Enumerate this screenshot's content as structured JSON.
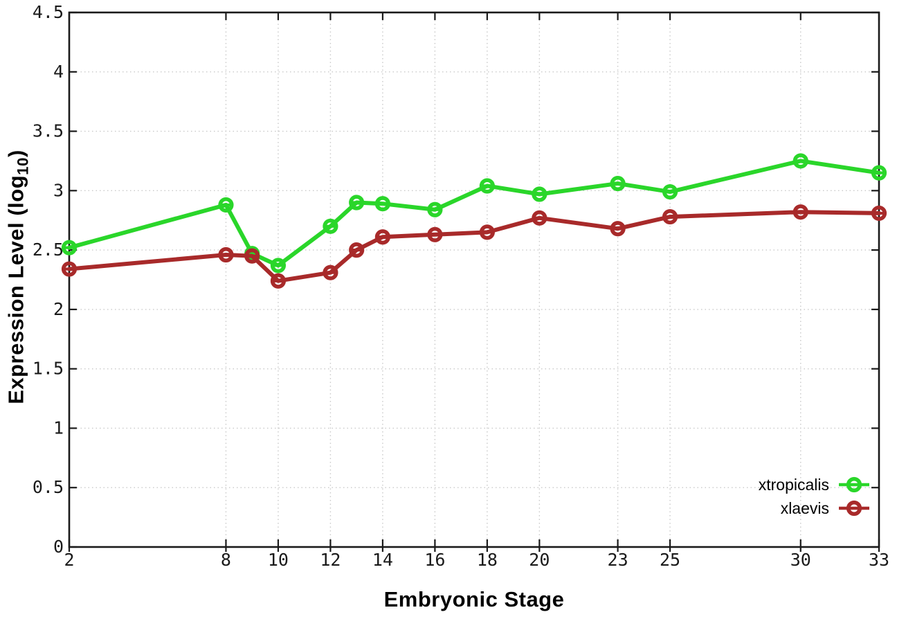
{
  "chart_data": {
    "type": "line",
    "title": "",
    "xlabel": "Embryonic Stage",
    "ylabel": "Expression Level (log10)",
    "ylabel_parts": {
      "prefix": "Expression Level (log",
      "subscript": "10",
      "suffix": ")"
    },
    "xlim": [
      2,
      33
    ],
    "ylim": [
      0,
      4.5
    ],
    "x_ticks": [
      2,
      8,
      10,
      12,
      14,
      16,
      18,
      20,
      23,
      25,
      30,
      33
    ],
    "y_ticks": [
      0,
      0.5,
      1,
      1.5,
      2,
      2.5,
      3,
      3.5,
      4,
      4.5
    ],
    "grid": "dotted",
    "legend_position": "inside-bottom-right",
    "colors": {
      "background": "#ffffff",
      "axis": "#1a1a1a",
      "grid": "#c9c9c9",
      "tick_text": "#1a1a1a",
      "xtropicalis": "#2ad62a",
      "xlaevis": "#a82a2a"
    },
    "marker_style": "open-circle-with-horizontal-dash",
    "series": [
      {
        "name": "xtropicalis",
        "color": "#2ad62a",
        "x": [
          2,
          8,
          9,
          10,
          12,
          13,
          14,
          16,
          18,
          20,
          23,
          25,
          30,
          33
        ],
        "y": [
          2.52,
          2.88,
          2.47,
          2.37,
          2.7,
          2.9,
          2.89,
          2.84,
          3.04,
          2.97,
          3.06,
          2.99,
          3.25,
          3.15
        ]
      },
      {
        "name": "xlaevis",
        "color": "#a82a2a",
        "x": [
          2,
          8,
          9,
          10,
          12,
          13,
          14,
          16,
          18,
          20,
          23,
          25,
          30,
          33
        ],
        "y": [
          2.34,
          2.46,
          2.45,
          2.24,
          2.31,
          2.5,
          2.61,
          2.63,
          2.65,
          2.77,
          2.68,
          2.78,
          2.82,
          2.81
        ]
      }
    ]
  }
}
